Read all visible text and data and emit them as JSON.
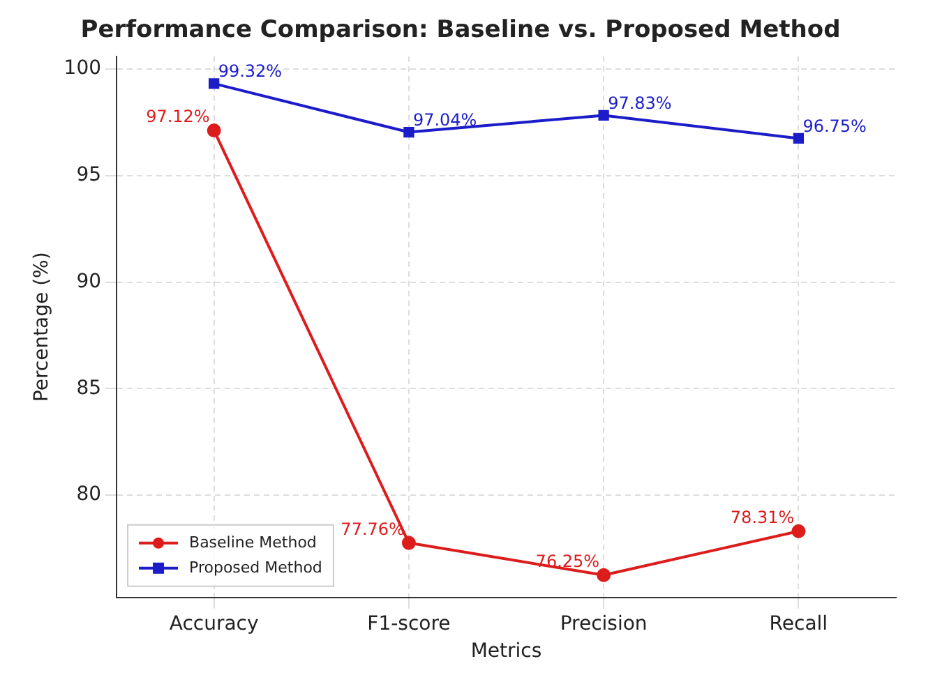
{
  "chart_data": {
    "type": "line",
    "title": "Performance Comparison: Baseline vs. Proposed Method",
    "xlabel": "Metrics",
    "ylabel": "Percentage (%)",
    "categories": [
      "Accuracy",
      "F1-score",
      "Precision",
      "Recall"
    ],
    "series": [
      {
        "name": "Baseline Method",
        "color": "#dd1c1c",
        "marker": "circle",
        "values": [
          97.12,
          77.76,
          76.25,
          78.31
        ],
        "value_labels": [
          "97.12%",
          "77.76%",
          "76.25%",
          "78.31%"
        ]
      },
      {
        "name": "Proposed Method",
        "color": "#1c1cc8",
        "marker": "square",
        "values": [
          99.32,
          97.04,
          97.83,
          96.75
        ],
        "value_labels": [
          "99.32%",
          "97.04%",
          "97.83%",
          "96.75%"
        ]
      }
    ],
    "ylim": [
      75.2,
      100.6
    ],
    "yticks": [
      80,
      85,
      90,
      95,
      100
    ],
    "grid": true,
    "legend": "bottom left",
    "line_style": "solid"
  }
}
